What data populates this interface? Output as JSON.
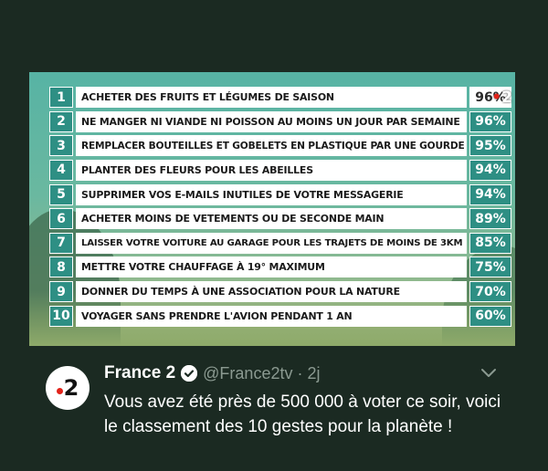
{
  "ranking": {
    "items": [
      {
        "rank": "1",
        "label": "ACHETER DES FRUITS ET LÉGUMES DE SAISON",
        "percent": "96%"
      },
      {
        "rank": "2",
        "label": "NE MANGER NI VIANDE NI POISSON AU MOINS UN JOUR PAR SEMAINE",
        "percent": "96%"
      },
      {
        "rank": "3",
        "label": "REMPLACER BOUTEILLES ET GOBELETS EN PLASTIQUE PAR UNE GOURDE",
        "percent": "95%"
      },
      {
        "rank": "4",
        "label": "PLANTER DES FLEURS POUR LES ABEILLES",
        "percent": "94%"
      },
      {
        "rank": "5",
        "label": "SUPPRIMER VOS E-MAILS INUTILES DE VOTRE MESSAGERIE",
        "percent": "94%"
      },
      {
        "rank": "6",
        "label": "ACHETER MOINS DE VETEMENTS OU DE SECONDE MAIN",
        "percent": "89%"
      },
      {
        "rank": "7",
        "label": "LAISSER VOTRE VOITURE AU GARAGE POUR LES TRAJETS DE MOINS DE 3KM",
        "percent": "85%"
      },
      {
        "rank": "8",
        "label": "METTRE VOTRE CHAUFFAGE À 19° MAXIMUM",
        "percent": "75%"
      },
      {
        "rank": "9",
        "label": "DONNER DU TEMPS À UNE ASSOCIATION POUR LA NATURE",
        "percent": "70%"
      },
      {
        "rank": "10",
        "label": "VOYAGER SANS PRENDRE L'AVION PENDANT 1 AN",
        "percent": "60%"
      }
    ],
    "logo_overlay": "2",
    "accent_color": "#2e8f84"
  },
  "tweet": {
    "author_name": "France 2",
    "verified": true,
    "handle": "@France2tv",
    "separator": "·",
    "time": "2j",
    "avatar_text": "2",
    "text": "Vous avez été près de 500 000 à voter ce soir, voici le classement des 10 gestes pour la planète !",
    "menu_icon": "chevron-down-icon"
  }
}
